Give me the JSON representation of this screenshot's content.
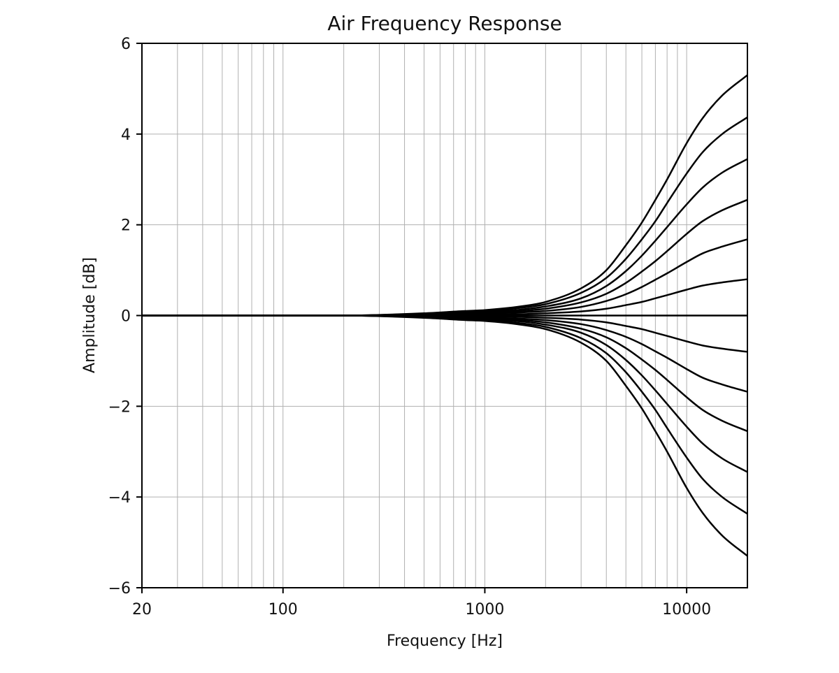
{
  "chart_data": {
    "type": "line",
    "title": "Air Frequency Response",
    "xlabel": "Frequency [Hz]",
    "ylabel": "Amplitude [dB]",
    "xscale": "log",
    "xlim": [
      20,
      20000
    ],
    "ylim": [
      -6,
      6
    ],
    "xticks": [
      20,
      100,
      1000,
      10000
    ],
    "xtick_labels": [
      "20",
      "100",
      "1000",
      "10000"
    ],
    "yticks": [
      -6,
      -4,
      -2,
      0,
      2,
      4,
      6
    ],
    "ytick_labels": [
      "−6",
      "−4",
      "−2",
      "0",
      "2",
      "4",
      "6"
    ],
    "grid": true,
    "line_color": "#000000",
    "grid_color": "#b0b0b0",
    "x": [
      20,
      100,
      200,
      500,
      800,
      1000,
      1500,
      2000,
      3000,
      4000,
      5000,
      6000,
      7000,
      8000,
      10000,
      12000,
      15000,
      20000
    ],
    "series": [
      {
        "values": [
          0,
          0,
          0,
          0.05,
          0.1,
          0.12,
          0.2,
          0.3,
          0.6,
          1.0,
          1.55,
          2.05,
          2.55,
          3.0,
          3.8,
          4.35,
          4.85,
          5.3
        ]
      },
      {
        "values": [
          0,
          0,
          0,
          0.04,
          0.08,
          0.1,
          0.17,
          0.25,
          0.5,
          0.83,
          1.25,
          1.68,
          2.08,
          2.48,
          3.13,
          3.6,
          4.0,
          4.37
        ]
      },
      {
        "values": [
          0,
          0,
          0,
          0.03,
          0.06,
          0.08,
          0.13,
          0.2,
          0.38,
          0.65,
          0.98,
          1.32,
          1.65,
          1.95,
          2.45,
          2.82,
          3.15,
          3.45
        ]
      },
      {
        "values": [
          0,
          0,
          0,
          0.02,
          0.04,
          0.06,
          0.1,
          0.15,
          0.29,
          0.48,
          0.72,
          0.97,
          1.2,
          1.42,
          1.8,
          2.08,
          2.32,
          2.55
        ]
      },
      {
        "values": [
          0,
          0,
          0,
          0.01,
          0.03,
          0.04,
          0.07,
          0.1,
          0.19,
          0.32,
          0.47,
          0.63,
          0.79,
          0.93,
          1.18,
          1.37,
          1.52,
          1.68
        ]
      },
      {
        "values": [
          0,
          0,
          0,
          0.01,
          0.01,
          0.02,
          0.03,
          0.05,
          0.09,
          0.15,
          0.23,
          0.3,
          0.38,
          0.45,
          0.57,
          0.66,
          0.73,
          0.8
        ]
      },
      {
        "values": [
          0,
          0,
          0,
          0,
          0,
          0,
          0,
          0,
          0,
          0,
          0,
          0,
          0,
          0,
          0,
          0,
          0,
          0
        ]
      },
      {
        "values": [
          0,
          0,
          0,
          -0.01,
          -0.01,
          -0.02,
          -0.03,
          -0.05,
          -0.09,
          -0.15,
          -0.23,
          -0.3,
          -0.38,
          -0.45,
          -0.57,
          -0.66,
          -0.73,
          -0.8
        ]
      },
      {
        "values": [
          0,
          0,
          0,
          -0.01,
          -0.03,
          -0.04,
          -0.07,
          -0.1,
          -0.19,
          -0.32,
          -0.47,
          -0.63,
          -0.79,
          -0.93,
          -1.18,
          -1.37,
          -1.52,
          -1.68
        ]
      },
      {
        "values": [
          0,
          0,
          0,
          -0.02,
          -0.04,
          -0.06,
          -0.1,
          -0.15,
          -0.29,
          -0.48,
          -0.72,
          -0.97,
          -1.2,
          -1.42,
          -1.8,
          -2.08,
          -2.32,
          -2.55
        ]
      },
      {
        "values": [
          0,
          0,
          0,
          -0.03,
          -0.06,
          -0.08,
          -0.13,
          -0.2,
          -0.38,
          -0.65,
          -0.98,
          -1.32,
          -1.65,
          -1.95,
          -2.45,
          -2.82,
          -3.15,
          -3.45
        ]
      },
      {
        "values": [
          0,
          0,
          0,
          -0.04,
          -0.08,
          -0.1,
          -0.17,
          -0.25,
          -0.5,
          -0.83,
          -1.25,
          -1.68,
          -2.08,
          -2.48,
          -3.13,
          -3.6,
          -4.0,
          -4.37
        ]
      },
      {
        "values": [
          0,
          0,
          0,
          -0.05,
          -0.1,
          -0.12,
          -0.2,
          -0.3,
          -0.6,
          -1.0,
          -1.55,
          -2.05,
          -2.55,
          -3.0,
          -3.8,
          -4.35,
          -4.85,
          -5.3
        ]
      }
    ]
  }
}
